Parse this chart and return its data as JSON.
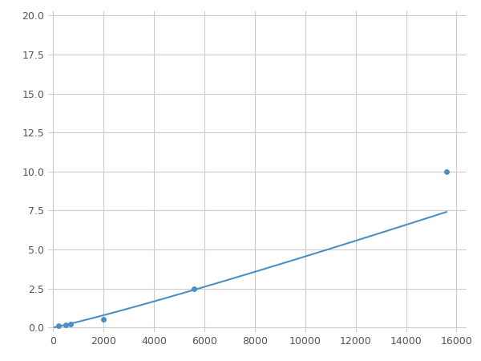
{
  "x": [
    200,
    500,
    700,
    2000,
    5600,
    15600
  ],
  "y": [
    0.1,
    0.15,
    0.2,
    0.5,
    2.5,
    10.0
  ],
  "line_color": "#4a90c4",
  "marker_color": "#4a90c4",
  "marker_size": 5,
  "xlim": [
    -200,
    16400
  ],
  "ylim": [
    -0.3,
    20.3
  ],
  "xticks": [
    0,
    2000,
    4000,
    6000,
    8000,
    10000,
    12000,
    14000,
    16000
  ],
  "yticks": [
    0.0,
    2.5,
    5.0,
    7.5,
    10.0,
    12.5,
    15.0,
    17.5,
    20.0
  ],
  "grid": true,
  "grid_color": "#cccccc",
  "background_color": "#ffffff",
  "figsize": [
    6.0,
    4.5
  ],
  "dpi": 100
}
